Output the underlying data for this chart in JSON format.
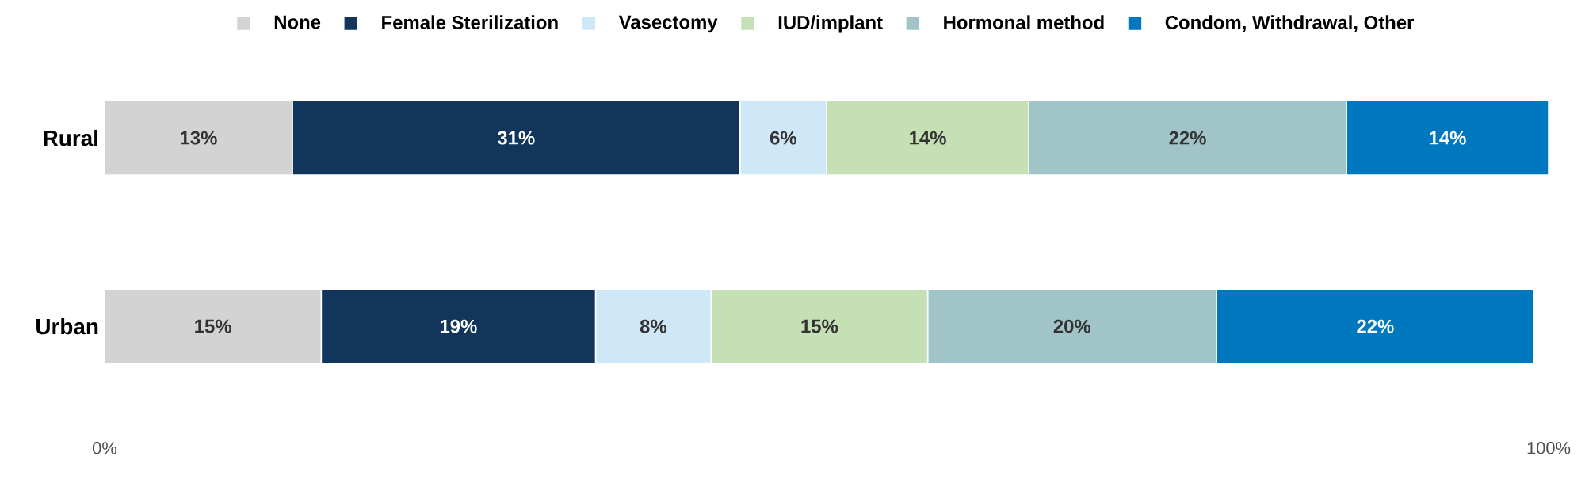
{
  "chart_data": {
    "type": "bar",
    "orientation": "horizontal",
    "stacked": true,
    "categories": [
      "Rural",
      "Urban"
    ],
    "series": [
      {
        "name": "None",
        "color": "#d3d3d3",
        "values": [
          13,
          15
        ],
        "value_labels": [
          "13%",
          "15%"
        ]
      },
      {
        "name": "Female Sterilization",
        "color": "#12355b",
        "values": [
          31,
          19
        ],
        "value_labels": [
          "31%",
          "19%"
        ]
      },
      {
        "name": "Vasectomy",
        "color": "#cfe8f7",
        "values": [
          6,
          8
        ],
        "value_labels": [
          "6%",
          "8%"
        ]
      },
      {
        "name": "IUD/implant",
        "color": "#c5e0b4",
        "values": [
          14,
          15
        ],
        "value_labels": [
          "14%",
          "15%"
        ]
      },
      {
        "name": "Hormonal method",
        "color": "#a0c4c8",
        "values": [
          22,
          20
        ],
        "value_labels": [
          "22%",
          "20%"
        ]
      },
      {
        "name": "Condom, Withdrawal, Other",
        "color": "#0078bf",
        "values": [
          14,
          22
        ],
        "value_labels": [
          "14%",
          "22%"
        ]
      }
    ],
    "xlim": [
      0,
      100
    ],
    "xticks": [
      {
        "value": 0,
        "label": "0%"
      },
      {
        "value": 100,
        "label": "100%"
      }
    ],
    "legend": "top",
    "grid": false
  }
}
